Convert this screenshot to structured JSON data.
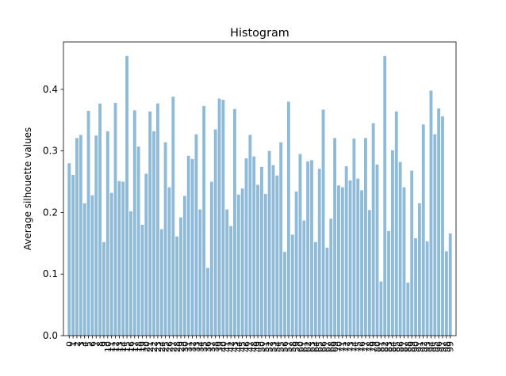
{
  "chart_data": {
    "type": "bar",
    "title": "Histogram",
    "xlabel": "",
    "ylabel": "Average silhouette values",
    "ylim": [
      0,
      0.477
    ],
    "xlim": [
      -1.5,
      100.5
    ],
    "yticks": [
      0.0,
      0.1,
      0.2,
      0.3,
      0.4
    ],
    "ytick_labels": [
      "0.0",
      "0.1",
      "0.2",
      "0.3",
      "0.4"
    ],
    "grid": false,
    "bar_color": "#1f77b4",
    "bar_alpha": 0.5,
    "categories": [
      "0",
      "1",
      "2",
      "3",
      "4",
      "5",
      "6",
      "7",
      "8",
      "9",
      "10",
      "11",
      "12",
      "13",
      "14",
      "15",
      "16",
      "17",
      "18",
      "19",
      "20",
      "21",
      "22",
      "23",
      "24",
      "25",
      "26",
      "27",
      "28",
      "29",
      "30",
      "31",
      "32",
      "33",
      "34",
      "35",
      "36",
      "37",
      "38",
      "39",
      "40",
      "41",
      "42",
      "43",
      "44",
      "45",
      "46",
      "47",
      "48",
      "49",
      "50",
      "51",
      "52",
      "53",
      "54",
      "55",
      "56",
      "57",
      "58",
      "59",
      "60",
      "61",
      "62",
      "63",
      "64",
      "65",
      "66",
      "67",
      "68",
      "69",
      "70",
      "71",
      "72",
      "73",
      "74",
      "75",
      "76",
      "77",
      "78",
      "79",
      "80",
      "81",
      "82",
      "83",
      "84",
      "85",
      "86",
      "87",
      "88",
      "89",
      "90",
      "91",
      "92",
      "93",
      "94",
      "95",
      "96",
      "97",
      "98",
      "99"
    ],
    "values": [
      0.28,
      0.261,
      0.321,
      0.326,
      0.215,
      0.365,
      0.228,
      0.325,
      0.377,
      0.152,
      0.332,
      0.232,
      0.378,
      0.251,
      0.25,
      0.454,
      0.202,
      0.366,
      0.307,
      0.18,
      0.263,
      0.364,
      0.332,
      0.377,
      0.173,
      0.314,
      0.241,
      0.388,
      0.161,
      0.192,
      0.227,
      0.292,
      0.287,
      0.327,
      0.205,
      0.373,
      0.11,
      0.25,
      0.335,
      0.385,
      0.383,
      0.205,
      0.178,
      0.368,
      0.229,
      0.239,
      0.288,
      0.326,
      0.291,
      0.245,
      0.274,
      0.23,
      0.3,
      0.277,
      0.26,
      0.314,
      0.136,
      0.38,
      0.164,
      0.234,
      0.295,
      0.187,
      0.283,
      0.285,
      0.152,
      0.271,
      0.367,
      0.143,
      0.19,
      0.321,
      0.244,
      0.241,
      0.275,
      0.252,
      0.32,
      0.255,
      0.236,
      0.321,
      0.204,
      0.345,
      0.278,
      0.088,
      0.454,
      0.17,
      0.301,
      0.364,
      0.282,
      0.241,
      0.086,
      0.268,
      0.158,
      0.215,
      0.343,
      0.153,
      0.398,
      0.327,
      0.369,
      0.356,
      0.137,
      0.166
    ]
  }
}
